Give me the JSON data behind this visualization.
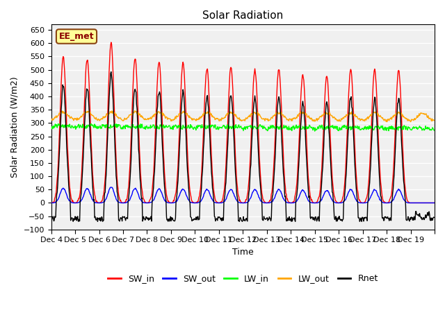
{
  "title": "Solar Radiation",
  "ylabel": "Solar Radiation (W/m2)",
  "xlabel": "Time",
  "ylim": [
    -100,
    670
  ],
  "yticks": [
    -100,
    -50,
    0,
    50,
    100,
    150,
    200,
    250,
    300,
    350,
    400,
    450,
    500,
    550,
    600,
    650
  ],
  "n_days": 16,
  "dt_hours": 0.5,
  "SW_in_color": "#FF0000",
  "SW_out_color": "#0000FF",
  "LW_in_color": "#00FF00",
  "LW_out_color": "#FFA500",
  "Rnet_color": "#000000",
  "annotation_text": "EE_met",
  "annotation_bg": "#FFFF99",
  "annotation_border": "#8B4513",
  "background_color": "#F0F0F0",
  "grid_color": "#FFFFFF",
  "SW_in_peaks": [
    550,
    540,
    600,
    545,
    530,
    525,
    505,
    510,
    500,
    505,
    480,
    475,
    505,
    500,
    500,
    0
  ],
  "legend_labels": [
    "SW_in",
    "SW_out",
    "LW_in",
    "LW_out",
    "Rnet"
  ]
}
